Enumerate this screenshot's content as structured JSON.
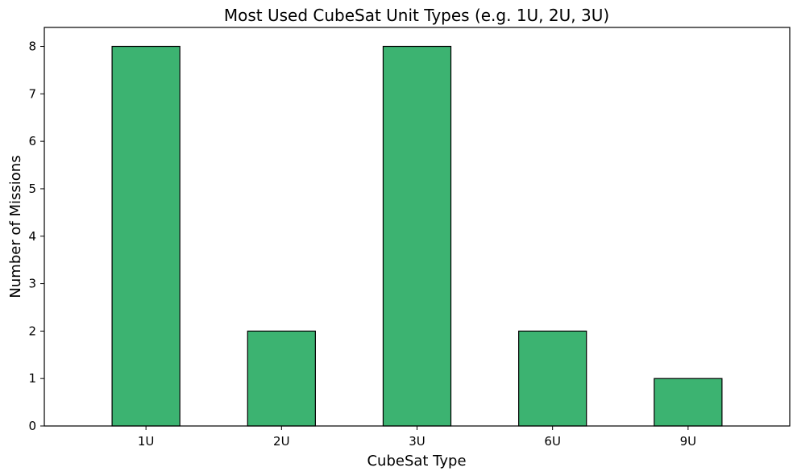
{
  "chart_data": {
    "type": "bar",
    "title": "Most Used CubeSat Unit Types (e.g. 1U, 2U, 3U)",
    "xlabel": "CubeSat Type",
    "ylabel": "Number of Missions",
    "categories": [
      "1U",
      "2U",
      "3U",
      "6U",
      "9U"
    ],
    "values": [
      8,
      2,
      8,
      2,
      1
    ],
    "ylim": [
      0,
      8.4
    ],
    "yticks": [
      0,
      1,
      2,
      3,
      4,
      5,
      6,
      7,
      8
    ],
    "bar_color": "#3cb371",
    "bar_edge_color": "#000000",
    "grid": false,
    "legend": "none"
  }
}
